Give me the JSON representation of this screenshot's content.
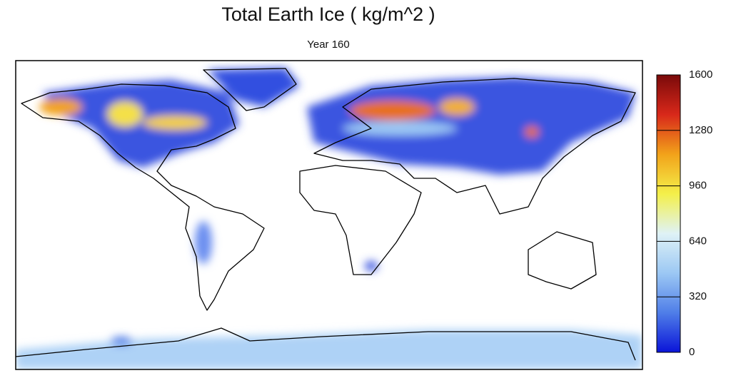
{
  "chart_data": {
    "type": "map",
    "title": "Total Earth Ice ( kg/m^2 )",
    "subtitle": "Year 160",
    "colorbar": {
      "lim": [
        0,
        1600
      ],
      "ticks": [
        0,
        320,
        640,
        960,
        1280,
        1600
      ],
      "colors": [
        "#0a14d8",
        "#4f7ee8",
        "#9cc8f4",
        "#dff2f6",
        "#f4f04a",
        "#f2a21a",
        "#d8281a",
        "#7a0a0a"
      ]
    }
  }
}
